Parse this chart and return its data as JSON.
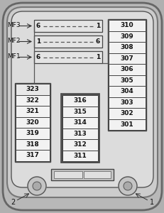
{
  "bg_outer": "#b0b0b0",
  "bg_inner": "#c8c8c8",
  "bg_panel": "#e0e0e0",
  "fuse_bg": "#f2f2f2",
  "fuse_bg2": "#e8e8e8",
  "border_dark": "#444444",
  "border_mid": "#666666",
  "border_light": "#888888",
  "text_color": "#111111",
  "mf_rows": [
    {
      "label": "MF3",
      "lnum": "6",
      "rnum": "1"
    },
    {
      "label": "MF2",
      "lnum": "1",
      "rnum": "6"
    },
    {
      "label": "MF1",
      "lnum": "6",
      "rnum": "1"
    }
  ],
  "left_col": [
    "323",
    "322",
    "321",
    "320",
    "319",
    "318",
    "317"
  ],
  "mid_col": [
    "316",
    "315",
    "314",
    "313",
    "312",
    "311"
  ],
  "right_col": [
    "310",
    "309",
    "308",
    "307",
    "306",
    "305",
    "304",
    "303",
    "302",
    "301"
  ],
  "screw_left_label": "2",
  "screw_right_label": "1"
}
